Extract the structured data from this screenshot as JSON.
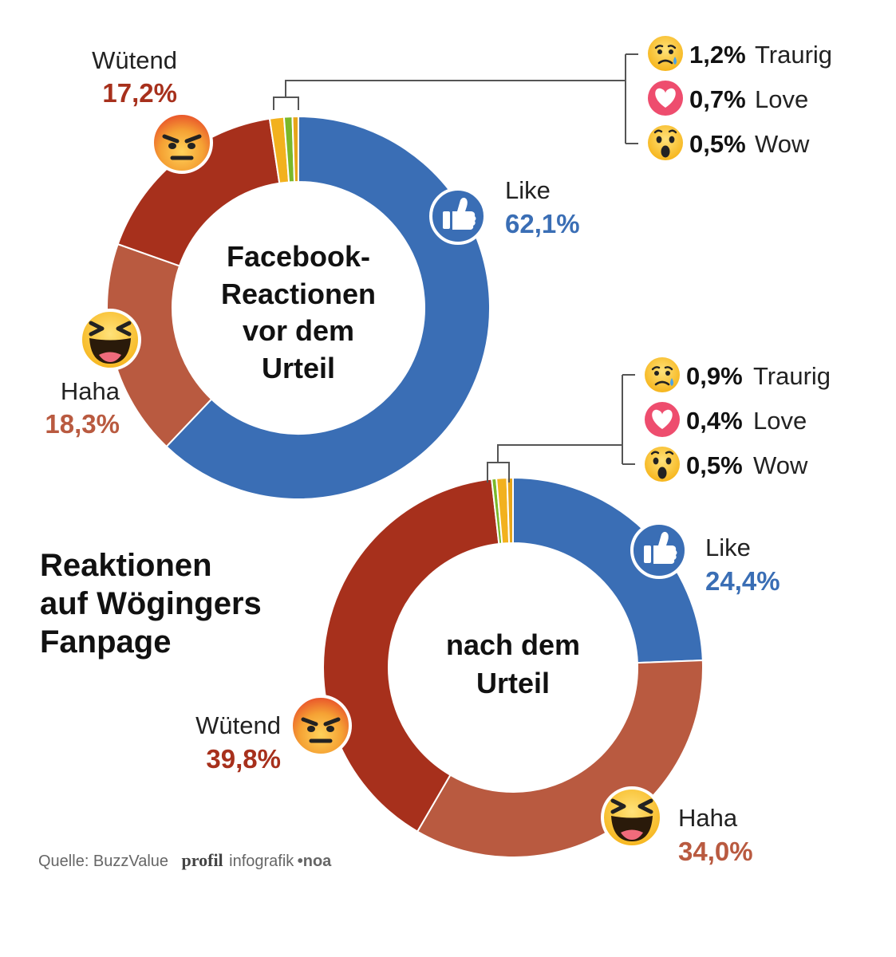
{
  "headline": [
    "Reaktionen",
    "auf Wögingers",
    "Fanpage"
  ],
  "source": {
    "text": "Quelle: BuzzValue",
    "brand": "profil",
    "brand_suffix": "infografik",
    "author": "•noa"
  },
  "colors": {
    "like": "#3a6eb5",
    "haha": "#b95a40",
    "wuetend": "#a7301c",
    "traurig": "#f2b11e",
    "love": "#7ab829",
    "wow": "#e6a51a",
    "connector": "#555555"
  },
  "icons": {
    "like": "thumbs-up-icon",
    "haha": "laughing-face-icon",
    "wuetend": "angry-face-icon",
    "traurig": "crying-face-icon",
    "love": "heart-icon",
    "wow": "surprised-face-icon"
  },
  "chart_data": [
    {
      "type": "pie",
      "title": [
        "Facebook-",
        "Reactionen",
        "vor dem",
        "Urteil"
      ],
      "slices": [
        {
          "key": "like",
          "label": "Like",
          "value": 62.1,
          "display": "62,1%"
        },
        {
          "key": "haha",
          "label": "Haha",
          "value": 18.3,
          "display": "18,3%"
        },
        {
          "key": "wuetend",
          "label": "Wütend",
          "value": 17.2,
          "display": "17,2%"
        },
        {
          "key": "traurig",
          "label": "Traurig",
          "value": 1.2,
          "display": "1,2%"
        },
        {
          "key": "love",
          "label": "Love",
          "value": 0.7,
          "display": "0,7%"
        },
        {
          "key": "wow",
          "label": "Wow",
          "value": 0.5,
          "display": "0,5%"
        }
      ]
    },
    {
      "type": "pie",
      "title": [
        "nach dem",
        "Urteil"
      ],
      "slices": [
        {
          "key": "like",
          "label": "Like",
          "value": 24.4,
          "display": "24,4%"
        },
        {
          "key": "haha",
          "label": "Haha",
          "value": 34.0,
          "display": "34,0%"
        },
        {
          "key": "wuetend",
          "label": "Wütend",
          "value": 39.8,
          "display": "39,8%"
        },
        {
          "key": "traurig",
          "label": "Traurig",
          "value": 0.9,
          "display": "0,9%"
        },
        {
          "key": "love",
          "label": "Love",
          "value": 0.4,
          "display": "0,4%"
        },
        {
          "key": "wow",
          "label": "Wow",
          "value": 0.5,
          "display": "0,5%"
        }
      ]
    }
  ]
}
